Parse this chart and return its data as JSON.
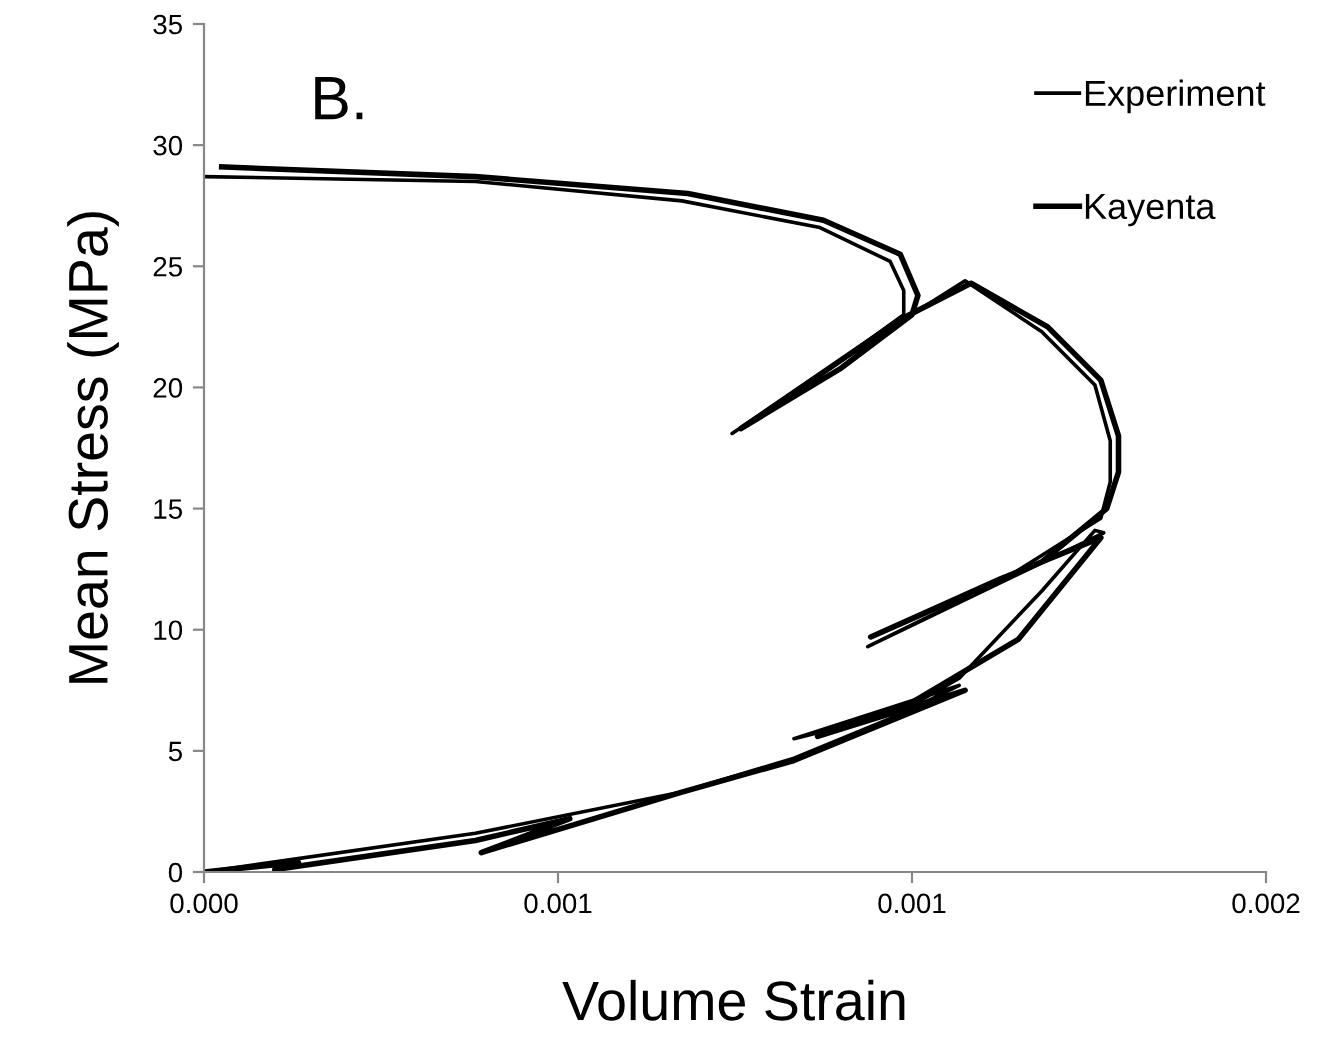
{
  "chart_data": {
    "type": "line",
    "xlabel": "Volume Strain",
    "ylabel": "Mean Stress (MPa)",
    "annotations": [
      "B."
    ],
    "xlim": [
      0,
      0.0018
    ],
    "xticks": [
      {
        "value": 0,
        "label": "0.000"
      },
      {
        "value": 0.0006,
        "label": "0.001"
      },
      {
        "value": 0.0012,
        "label": "0.001"
      },
      {
        "value": 0.0018,
        "label": "0.002"
      }
    ],
    "ylim": [
      0,
      35
    ],
    "yticks": [
      0,
      5,
      10,
      15,
      20,
      25,
      30,
      35
    ],
    "grid": false,
    "legend": "top right",
    "marker": "none",
    "line_style": "solid",
    "series": [
      {
        "name": "Experiment",
        "color": "#000000",
        "x": [
          0,
          0.00046,
          0.00081,
          0.001,
          0.00118,
          0.00128,
          0.001,
          0.00118,
          0.00128,
          0.00142,
          0.00151,
          0.001525,
          0.001125,
          0.00135,
          0.00152,
          0.001536,
          0.001536,
          0.00151,
          0.00142,
          0.00129,
          0.00116,
          0.000895,
          0.00105,
          0.001186,
          0.001186,
          0.001163,
          0.001044,
          0.00081,
          0.00046,
          0
        ],
        "values": [
          0,
          1.6,
          3.3,
          4.7,
          6.5,
          7.7,
          5.5,
          6.6,
          8.0,
          11.6,
          14.1,
          14.0,
          9.3,
          12.0,
          14.6,
          16.1,
          17.8,
          20.1,
          22.3,
          24.4,
          22.4,
          18.1,
          20.6,
          23.0,
          24.0,
          25.2,
          26.6,
          27.7,
          28.5,
          28.7
        ]
      },
      {
        "name": "Kayenta",
        "color": "#000000",
        "x": [
          0,
          0.00016,
          0.00012,
          0.00046,
          0.00062,
          0.00047,
          0.00081,
          0.001,
          0.00116,
          0.00129,
          0.00104,
          0.0012,
          0.00138,
          0.00152,
          0.00135,
          0.00113,
          0.00142,
          0.00153,
          0.00155,
          0.00155,
          0.00152,
          0.00143,
          0.0013,
          0.00118,
          0.00091,
          0.00108,
          0.0012,
          0.00121,
          0.00118,
          0.00105,
          0.00082,
          0.00046,
          3e-05
        ],
        "values": [
          0,
          0.4,
          0.1,
          1.3,
          2.2,
          0.8,
          3.3,
          4.6,
          6.2,
          7.5,
          5.6,
          7.0,
          9.6,
          13.8,
          12.1,
          9.7,
          12.8,
          15.0,
          16.5,
          18.0,
          20.3,
          22.5,
          24.3,
          22.8,
          18.3,
          20.8,
          23.0,
          23.8,
          25.5,
          26.9,
          28.0,
          28.7,
          29.1
        ]
      }
    ]
  }
}
